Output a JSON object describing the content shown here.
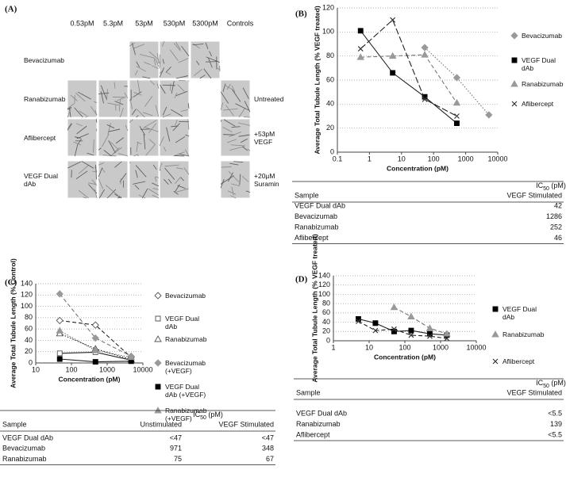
{
  "panel_a": {
    "label": "(A)",
    "columns": [
      "0.53pM",
      "5.3pM",
      "53pM",
      "530pM",
      "5300pM",
      "Controls"
    ],
    "rows": [
      "Bevacizumab",
      "Ranabizumab",
      "Aflibercept",
      "VEGF Dual dAb"
    ],
    "controls": [
      "Untreated",
      "+53pM VEGF",
      "+20µM Suramin"
    ]
  },
  "chart_data": [
    {
      "type": "line",
      "label": "(B)",
      "y_label": "Average Total Tubule Length (% VEGF treated)",
      "x_label": "Concentration (pM)",
      "xscale": "log",
      "xlim": [
        0.1,
        10000
      ],
      "xticks": [
        0.1,
        1,
        10,
        100,
        1000,
        10000
      ],
      "ylim": [
        0,
        120
      ],
      "yticks": [
        0,
        20,
        40,
        60,
        80,
        100,
        120
      ],
      "grid": true,
      "series": [
        {
          "name": "Bevacizumab",
          "color": "#999999",
          "marker": "diamond",
          "filled": true,
          "dash": "dotted",
          "x": [
            53,
            530,
            5300
          ],
          "values": [
            87,
            62,
            31
          ]
        },
        {
          "name": "VEGF Dual dAb",
          "color": "#000000",
          "marker": "square",
          "filled": true,
          "dash": "solid",
          "x": [
            0.53,
            5.3,
            53,
            530
          ],
          "values": [
            101,
            66,
            46,
            24
          ]
        },
        {
          "name": "Ranabizumab",
          "color": "#999999",
          "marker": "triangle",
          "filled": true,
          "dash": "dashed",
          "x": [
            0.53,
            5.3,
            53,
            530
          ],
          "values": [
            79,
            80,
            81,
            41
          ]
        },
        {
          "name": "Aflibercept",
          "color": "#333333",
          "marker": "cross",
          "filled": false,
          "dash": "longdash",
          "x": [
            0.53,
            5.3,
            53,
            530
          ],
          "values": [
            86,
            110,
            44,
            30
          ]
        }
      ]
    },
    {
      "type": "line",
      "label": "(C)",
      "y_label": "Average Total Tubule Length (% Control)",
      "x_label": "Concentration (pM)",
      "xscale": "log",
      "xlim": [
        10,
        10000
      ],
      "xticks": [
        10,
        100,
        1000,
        10000
      ],
      "ylim": [
        0,
        140
      ],
      "yticks": [
        0,
        20,
        40,
        60,
        80,
        100,
        120,
        140
      ],
      "grid": true,
      "series": [
        {
          "name": "Bevacizumab",
          "color": "#555555",
          "marker": "diamond",
          "filled": false,
          "dash": "dashed",
          "x": [
            47,
            470,
            4700
          ],
          "values": [
            75,
            67,
            10
          ]
        },
        {
          "name": "VEGF Dual dAb",
          "color": "#555555",
          "marker": "square",
          "filled": false,
          "dash": "solid",
          "x": [
            47,
            470,
            4700
          ],
          "values": [
            17,
            19,
            5
          ]
        },
        {
          "name": "Ranabizumab",
          "color": "#555555",
          "marker": "triangle",
          "filled": false,
          "dash": "dotted",
          "x": [
            47,
            470,
            4700
          ],
          "values": [
            52,
            25,
            6
          ]
        },
        {
          "name": "Bevacizumab (+VEGF)",
          "color": "#999999",
          "marker": "diamond",
          "filled": true,
          "dash": "dashed",
          "x": [
            47,
            470,
            4700
          ],
          "values": [
            122,
            44,
            12
          ]
        },
        {
          "name": "VEGF Dual dAb (+VEGF)",
          "color": "#000000",
          "marker": "square",
          "filled": true,
          "dash": "solid",
          "x": [
            47,
            470,
            4700
          ],
          "values": [
            7,
            2,
            3
          ]
        },
        {
          "name": "Ranabizumab (+VEGF)",
          "color": "#999999",
          "marker": "triangle",
          "filled": true,
          "dash": "dotted",
          "x": [
            47,
            470,
            4700
          ],
          "values": [
            57,
            22,
            10
          ]
        }
      ]
    },
    {
      "type": "line",
      "label": "(D)",
      "y_label": "Average Total Tubule Length (% VEGF treated)",
      "x_label": "Concentration (pM)",
      "xscale": "log",
      "xlim": [
        1,
        10000
      ],
      "xticks": [
        1,
        10,
        100,
        1000,
        10000
      ],
      "ylim": [
        0,
        140
      ],
      "yticks": [
        0,
        20,
        40,
        60,
        80,
        100,
        120,
        140
      ],
      "grid": true,
      "series": [
        {
          "name": "VEGF Dual dAb",
          "color": "#000000",
          "marker": "square",
          "filled": true,
          "dash": "solid",
          "x": [
            5,
            15,
            50,
            150,
            500,
            1500
          ],
          "values": [
            47,
            38,
            20,
            22,
            15,
            12
          ]
        },
        {
          "name": "Ranabizumab",
          "color": "#999999",
          "marker": "triangle",
          "filled": true,
          "dash": "dashed",
          "x": [
            50,
            150,
            500,
            1500
          ],
          "values": [
            72,
            52,
            27,
            15
          ]
        },
        {
          "name": "Aflibercept",
          "color": "#333333",
          "marker": "cross",
          "filled": false,
          "dash": "dashed",
          "x": [
            5,
            15,
            50,
            150,
            500,
            1500
          ],
          "values": [
            42,
            22,
            25,
            12,
            10,
            5
          ]
        }
      ]
    }
  ],
  "tables": [
    {
      "sample": "Sample",
      "ic": "IC",
      "sub": "50",
      "unit": " (pM)",
      "columns": [
        "VEGF Stimulated"
      ],
      "rows": [
        [
          "VEGF Dual dAb",
          "42"
        ],
        [
          "Bevacizumab",
          "1286"
        ],
        [
          "Ranabizumab",
          "252"
        ],
        [
          "Aflibercept",
          "46"
        ]
      ]
    },
    {
      "sample": "Sample",
      "ic": "IC",
      "sub": "50",
      "unit": " (pM)",
      "columns": [
        "Unstimulated",
        "VEGF Stimulated"
      ],
      "rows": [
        [
          "VEGF Dual dAb",
          "<47",
          "<47"
        ],
        [
          "Bevacizumab",
          "971",
          "348"
        ],
        [
          "Ranabizumab",
          "75",
          "67"
        ]
      ]
    },
    {
      "sample": "Sample",
      "ic": "IC",
      "sub": "50",
      "unit": " (pM)",
      "columns": [
        "VEGF Stimulated"
      ],
      "rows": [
        [
          "VEGF Dual dAb",
          "<5.5"
        ],
        [
          "Ranabizumab",
          "139"
        ],
        [
          "Aflibercept",
          "<5.5"
        ]
      ]
    }
  ]
}
